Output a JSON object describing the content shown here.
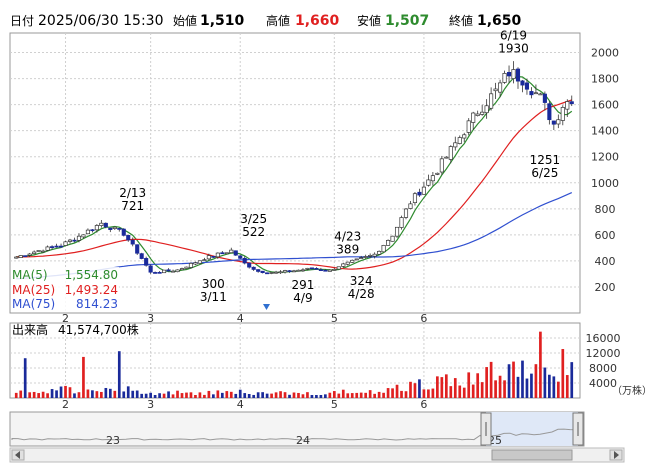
{
  "header": {
    "date_label": "日付",
    "datetime": "2025/06/30 15:30",
    "open_label": "始値",
    "open": "1,510",
    "high_label": "高値",
    "high": "1,660",
    "low_label": "安値",
    "low": "1,507",
    "close_label": "終値",
    "close": "1,650"
  },
  "moving_averages": [
    {
      "name": "MA(5)",
      "value": "1,554.80",
      "color": "#2e8b2e"
    },
    {
      "name": "MA(25)",
      "value": "1,493.24",
      "color": "#e02020"
    },
    {
      "name": "MA(75)",
      "value": "814.23",
      "color": "#3050d0"
    }
  ],
  "volume_panel": {
    "label": "出来高",
    "value": "41,574,700株",
    "unit": "（万株）",
    "yticks": [
      "16000",
      "12000",
      "8000",
      "4000"
    ],
    "ytick_values": [
      16000,
      12000,
      8000,
      4000
    ]
  },
  "navigator": {
    "labels": [
      "23",
      "24",
      "25"
    ]
  },
  "colors": {
    "up": "#e02020",
    "down": "#1a2a9a",
    "grid": "#d0d0d0"
  },
  "chart_data": {
    "type": "candlestick",
    "ylim": [
      0,
      2150
    ],
    "yticks": [
      200,
      400,
      600,
      800,
      1000,
      1200,
      1400,
      1600,
      1800,
      2000
    ],
    "xlabels": [
      "2",
      "3",
      "4",
      "5",
      "6"
    ],
    "xlabel_positions": [
      11,
      30,
      50,
      71,
      91
    ],
    "n_days": 125,
    "price_anchors": [
      [
        0,
        430
      ],
      [
        5,
        480
      ],
      [
        10,
        520
      ],
      [
        14,
        590
      ],
      [
        19,
        690
      ],
      [
        24,
        610
      ],
      [
        28,
        420
      ],
      [
        30,
        310
      ],
      [
        36,
        330
      ],
      [
        42,
        420
      ],
      [
        48,
        480
      ],
      [
        51,
        380
      ],
      [
        54,
        320
      ],
      [
        58,
        310
      ],
      [
        66,
        340
      ],
      [
        70,
        325
      ],
      [
        72,
        360
      ],
      [
        80,
        450
      ],
      [
        84,
        600
      ],
      [
        88,
        850
      ],
      [
        94,
        1100
      ],
      [
        99,
        1350
      ],
      [
        103,
        1550
      ],
      [
        107,
        1700
      ],
      [
        110,
        1850
      ],
      [
        113,
        1800
      ],
      [
        117,
        1650
      ],
      [
        120,
        1450
      ],
      [
        122,
        1600
      ],
      [
        124,
        1650
      ]
    ],
    "annotations": [
      {
        "lines": [
          "2/13",
          "721"
        ],
        "day": 26,
        "value": 721,
        "pos": "above"
      },
      {
        "lines": [
          "300",
          "3/11"
        ],
        "day": 44,
        "value": 300,
        "pos": "below"
      },
      {
        "lines": [
          "3/25",
          "522"
        ],
        "day": 53,
        "value": 522,
        "pos": "above"
      },
      {
        "lines": [
          "291",
          "4/9"
        ],
        "day": 64,
        "value": 291,
        "pos": "below"
      },
      {
        "lines": [
          "4/23",
          "389"
        ],
        "day": 74,
        "value": 389,
        "pos": "above"
      },
      {
        "lines": [
          "324",
          "4/28"
        ],
        "day": 77,
        "value": 324,
        "pos": "below"
      },
      {
        "lines": [
          "6/19",
          "1930"
        ],
        "day": 111,
        "value": 1930,
        "pos": "above"
      },
      {
        "lines": [
          "1251",
          "6/25"
        ],
        "day": 118,
        "value": 1251,
        "pos": "below"
      }
    ]
  }
}
